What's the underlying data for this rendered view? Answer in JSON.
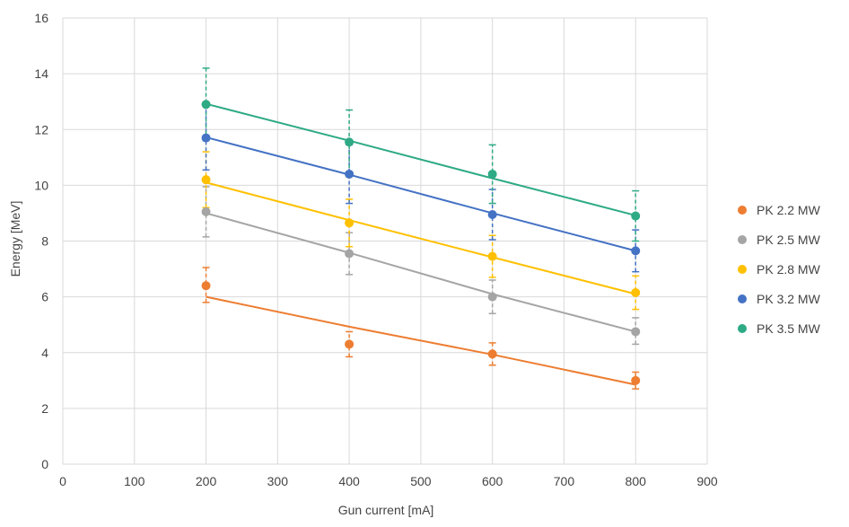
{
  "chart_data": {
    "type": "scatter",
    "xlabel": "Gun current [mA]",
    "ylabel": "Energy [MeV]",
    "xlim": [
      0,
      900
    ],
    "ylim": [
      0,
      16
    ],
    "xticks": [
      0,
      100,
      200,
      300,
      400,
      500,
      600,
      700,
      800,
      900
    ],
    "yticks": [
      0,
      2,
      4,
      6,
      8,
      10,
      12,
      14,
      16
    ],
    "grid": true,
    "legend_position": "right",
    "series": [
      {
        "name": "PK 2.2 MW",
        "color": "#ed7d31",
        "x": [
          200,
          400,
          600,
          800
        ],
        "y": [
          6.4,
          4.3,
          3.95,
          3.0
        ],
        "err_low": [
          5.8,
          3.85,
          3.55,
          2.7
        ],
        "err_high": [
          7.05,
          4.75,
          4.35,
          3.3
        ],
        "trendline": [
          6.0,
          4.93,
          3.93,
          2.85
        ]
      },
      {
        "name": "PK 2.5 MW",
        "color": "#a5a5a5",
        "x": [
          200,
          400,
          600,
          800
        ],
        "y": [
          9.05,
          7.55,
          6.0,
          4.75
        ],
        "err_low": [
          8.15,
          6.8,
          5.4,
          4.3
        ],
        "err_high": [
          9.95,
          8.3,
          6.6,
          5.25
        ],
        "trendline": [
          9.0,
          7.58,
          6.1,
          4.75
        ]
      },
      {
        "name": "PK 2.8 MW",
        "color": "#ffc000",
        "x": [
          200,
          400,
          600,
          800
        ],
        "y": [
          10.2,
          8.65,
          7.45,
          6.15
        ],
        "err_low": [
          9.2,
          7.8,
          6.7,
          5.55
        ],
        "err_high": [
          11.2,
          9.5,
          8.2,
          6.75
        ],
        "trendline": [
          10.1,
          8.75,
          7.42,
          6.1
        ]
      },
      {
        "name": "PK 3.2 MW",
        "color": "#4472c4",
        "x": [
          200,
          400,
          600,
          800
        ],
        "y": [
          11.7,
          10.4,
          8.95,
          7.65
        ],
        "err_low": [
          10.55,
          9.35,
          8.05,
          6.9
        ],
        "err_high": [
          12.9,
          11.45,
          9.85,
          8.4
        ],
        "trendline": [
          11.72,
          10.38,
          9.0,
          7.65
        ]
      },
      {
        "name": "PK 3.5 MW",
        "color": "#2eaa85",
        "x": [
          200,
          400,
          600,
          800
        ],
        "y": [
          12.9,
          11.55,
          10.4,
          8.9
        ],
        "err_low": [
          11.6,
          10.4,
          9.35,
          8.0
        ],
        "err_high": [
          14.2,
          12.7,
          11.45,
          9.8
        ],
        "trendline": [
          12.92,
          11.6,
          10.25,
          8.92
        ]
      }
    ]
  }
}
